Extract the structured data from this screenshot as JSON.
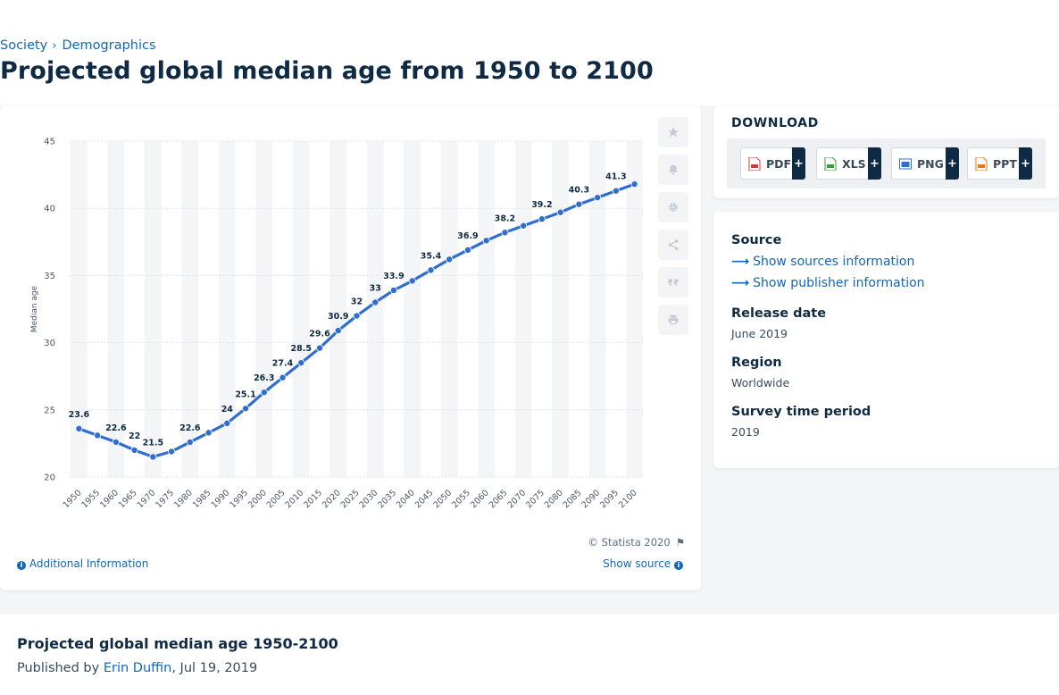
{
  "breadcrumb": {
    "items": [
      "Society",
      "Demographics"
    ],
    "separator": "›"
  },
  "page_title": "Projected global median age from 1950 to 2100",
  "chart_data": {
    "type": "line",
    "title": "Projected global median age from 1950 to 2100",
    "xlabel": "",
    "ylabel": "Median age",
    "ylim": [
      20,
      45
    ],
    "yticks": [
      20,
      25,
      30,
      35,
      40,
      45
    ],
    "grid": true,
    "categories": [
      "1950",
      "1955",
      "1960",
      "1965",
      "1970",
      "1975",
      "1980",
      "1985",
      "1990",
      "1995",
      "2000",
      "2005",
      "2010",
      "2015",
      "2020",
      "2025",
      "2030",
      "2035",
      "2040",
      "2045",
      "2050",
      "2055",
      "2060",
      "2065",
      "2070",
      "2075",
      "2080",
      "2085",
      "2090",
      "2095",
      "2100"
    ],
    "series": [
      {
        "name": "Median age",
        "values": [
          23.6,
          23.1,
          22.6,
          22.0,
          21.5,
          21.9,
          22.6,
          23.3,
          24.0,
          25.1,
          26.3,
          27.4,
          28.5,
          29.6,
          30.9,
          32.0,
          33.0,
          33.9,
          34.6,
          35.4,
          36.2,
          36.9,
          37.6,
          38.2,
          38.7,
          39.2,
          39.7,
          40.3,
          40.8,
          41.3,
          41.8
        ],
        "labeled_values": [
          23.6,
          null,
          22.6,
          22,
          21.5,
          null,
          22.6,
          null,
          24,
          25.1,
          26.3,
          27.4,
          28.5,
          29.6,
          30.9,
          32,
          33,
          33.9,
          null,
          35.4,
          null,
          36.9,
          null,
          38.2,
          null,
          39.2,
          null,
          40.3,
          null,
          41.3,
          null
        ]
      }
    ],
    "copyright": "© Statista 2020"
  },
  "colors": {
    "line": "#2f6ed0",
    "grid": "#d9dde2",
    "stripe": "#f4f5f7",
    "text": "#0f2a44",
    "link": "#1466b8"
  },
  "tools": [
    {
      "name": "favorite",
      "icon": "star-icon"
    },
    {
      "name": "notify",
      "icon": "bell-icon"
    },
    {
      "name": "settings",
      "icon": "gear-icon"
    },
    {
      "name": "share",
      "icon": "share-icon"
    },
    {
      "name": "cite",
      "icon": "quote-icon"
    },
    {
      "name": "print",
      "icon": "printer-icon"
    }
  ],
  "footer_links": {
    "additional_info": "Additional Information",
    "show_source": "Show source"
  },
  "download": {
    "title": "DOWNLOAD",
    "buttons": [
      {
        "label": "PDF",
        "plus": "+",
        "color": "#d23b3b"
      },
      {
        "label": "XLS",
        "plus": "+",
        "color": "#3b9a3b"
      },
      {
        "label": "PNG",
        "plus": "+",
        "color": "#2f6ed0"
      },
      {
        "label": "PPT",
        "plus": "+",
        "color": "#e07b22"
      }
    ]
  },
  "meta": {
    "source_heading": "Source",
    "show_sources": "Show sources information",
    "show_publisher": "Show publisher information",
    "release_heading": "Release date",
    "release_value": "June 2019",
    "region_heading": "Region",
    "region_value": "Worldwide",
    "period_heading": "Survey time period",
    "period_value": "2019"
  },
  "publication": {
    "title": "Projected global median age 1950-2100",
    "published_by_prefix": "Published by",
    "author": "Erin Duffin",
    "date_suffix": ", Jul 19, 2019"
  }
}
